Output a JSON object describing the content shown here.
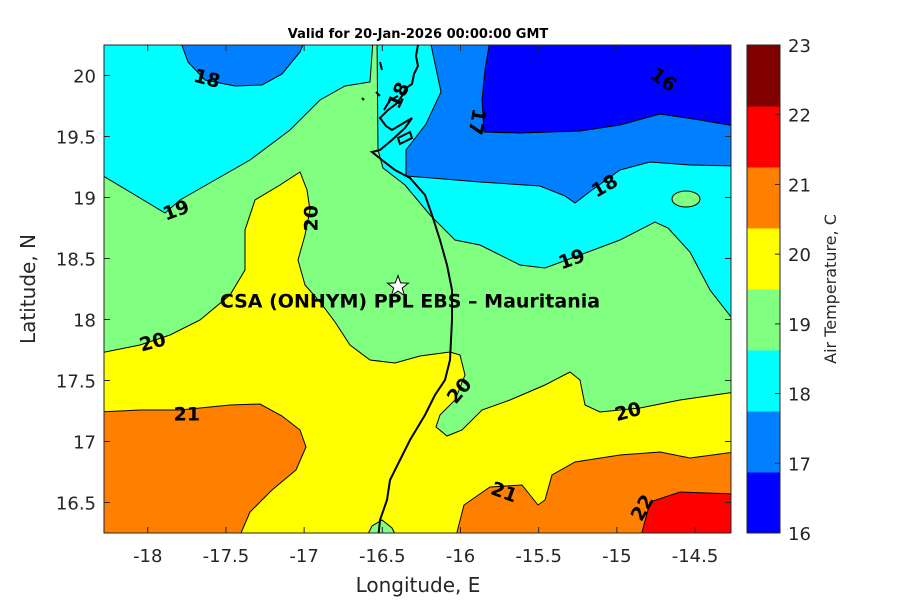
{
  "chart_data": {
    "type": "heatmap",
    "subtype": "filled-contour-map",
    "title": "Valid for 20-Jan-2026 00:00:00 GMT",
    "xlabel": "Longitude, E",
    "ylabel": "Latitude, N",
    "xlim": [
      -18.28,
      -14.27
    ],
    "ylim": [
      16.25,
      20.25
    ],
    "xticks": [
      -18,
      -17.5,
      -17,
      -16.5,
      -16,
      -15.5,
      -15,
      -14.5
    ],
    "xtick_labels": [
      "-18",
      "-17.5",
      "-17",
      "-16.5",
      "-16",
      "-15.5",
      "-15",
      "-14.5"
    ],
    "yticks": [
      16.5,
      17,
      17.5,
      18,
      18.5,
      19,
      19.5,
      20
    ],
    "ytick_labels": [
      "16.5",
      "17",
      "17.5",
      "18",
      "18.5",
      "19",
      "19.5",
      "20"
    ],
    "contour_levels": [
      16,
      17,
      18,
      19,
      20,
      21,
      22
    ],
    "contour_labels": [
      {
        "text": "18",
        "lon": -17.62,
        "lat": 19.98
      },
      {
        "text": "16",
        "lon": -14.7,
        "lat": 19.97
      },
      {
        "text": "17",
        "lon": -15.89,
        "lat": 19.62
      },
      {
        "text": "18",
        "lon": -16.4,
        "lat": 19.84
      },
      {
        "text": "18",
        "lon": -15.08,
        "lat": 19.1
      },
      {
        "text": "19",
        "lon": -17.82,
        "lat": 18.9
      },
      {
        "text": "20",
        "lon": -16.96,
        "lat": 18.83
      },
      {
        "text": "19",
        "lon": -15.29,
        "lat": 18.5
      },
      {
        "text": "20",
        "lon": -17.97,
        "lat": 17.82
      },
      {
        "text": "21",
        "lon": -17.75,
        "lat": 17.23
      },
      {
        "text": "20",
        "lon": -16.01,
        "lat": 17.42
      },
      {
        "text": "20",
        "lon": -14.93,
        "lat": 17.25
      },
      {
        "text": "21",
        "lon": -15.72,
        "lat": 16.59
      },
      {
        "text": "22",
        "lon": -14.84,
        "lat": 16.46
      }
    ],
    "annotation": {
      "text": "CSA (ONHYM) PPL EBS  – Mauritania",
      "marker": "star",
      "lon": -16.4,
      "lat": 18.27
    },
    "colorbar": {
      "label": "Air Temperature, C",
      "range": [
        16,
        23
      ],
      "ticks": [
        "16",
        "17",
        "18",
        "19",
        "20",
        "21",
        "22",
        "23"
      ],
      "colors": [
        "#0000ff",
        "#0080ff",
        "#00ffff",
        "#80ff80",
        "#ffff00",
        "#ff8000",
        "#ff0000",
        "#800000"
      ]
    }
  }
}
